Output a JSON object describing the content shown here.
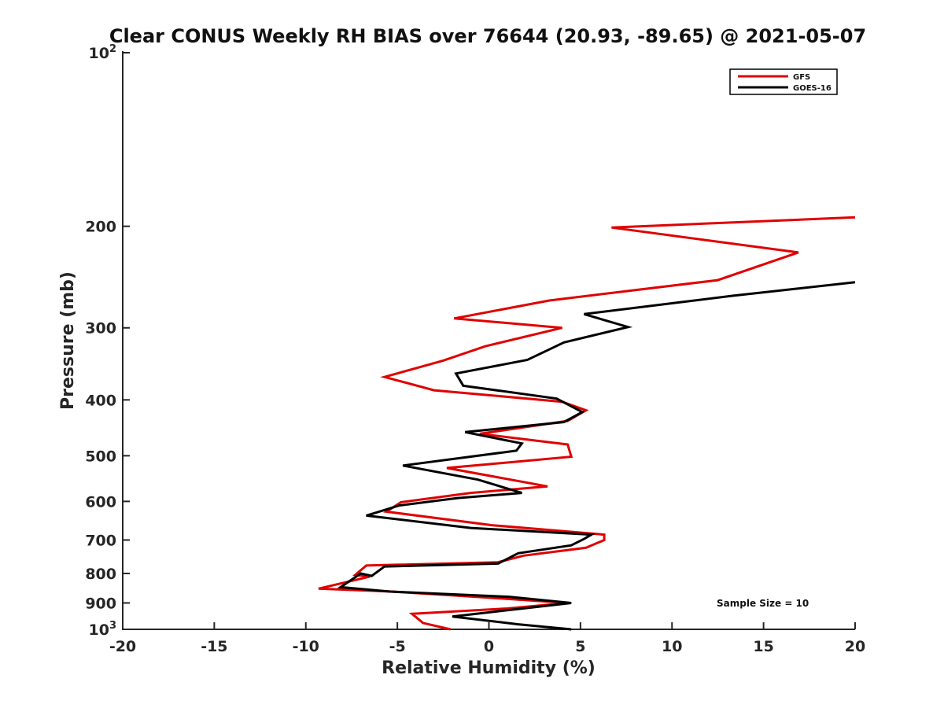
{
  "chart_data": {
    "type": "line",
    "title": "Clear CONUS Weekly RH BIAS over 76644 (20.93, -89.65) @ 2021-05-07",
    "xlabel": "Relative Humidity (%)",
    "ylabel": "Pressure (mb)",
    "xlim": [
      -20,
      20
    ],
    "ylim": [
      100,
      1000
    ],
    "yscale": "log",
    "y_reversed": true,
    "grid": false,
    "legend_position": "top-right",
    "annotation": "Sample Size = 10",
    "x_ticks": [
      {
        "value": -20,
        "label": "-20"
      },
      {
        "value": -15,
        "label": "-15"
      },
      {
        "value": -10,
        "label": "-10"
      },
      {
        "value": -5,
        "label": "-5"
      },
      {
        "value": 0,
        "label": "0"
      },
      {
        "value": 5,
        "label": "5"
      },
      {
        "value": 10,
        "label": "10"
      },
      {
        "value": 15,
        "label": "15"
      },
      {
        "value": 20,
        "label": "20"
      }
    ],
    "y_ticks": [
      {
        "value": 100,
        "label": "10",
        "exp": "2"
      },
      {
        "value": 200,
        "label": "200",
        "exp": ""
      },
      {
        "value": 300,
        "label": "300",
        "exp": ""
      },
      {
        "value": 400,
        "label": "400",
        "exp": ""
      },
      {
        "value": 500,
        "label": "500",
        "exp": ""
      },
      {
        "value": 600,
        "label": "600",
        "exp": ""
      },
      {
        "value": 700,
        "label": "700",
        "exp": ""
      },
      {
        "value": 800,
        "label": "800",
        "exp": ""
      },
      {
        "value": 900,
        "label": "900",
        "exp": ""
      },
      {
        "value": 1000,
        "label": "10",
        "exp": "3"
      }
    ],
    "series": [
      {
        "name": "GFS",
        "color": "#e00000",
        "points": [
          {
            "x": 20.0,
            "p": 193
          },
          {
            "x": 6.7,
            "p": 201
          },
          {
            "x": 16.9,
            "p": 222
          },
          {
            "x": 12.5,
            "p": 248
          },
          {
            "x": 3.3,
            "p": 269
          },
          {
            "x": -1.9,
            "p": 289
          },
          {
            "x": 4.0,
            "p": 300
          },
          {
            "x": -0.2,
            "p": 323
          },
          {
            "x": -2.5,
            "p": 342
          },
          {
            "x": -5.7,
            "p": 365
          },
          {
            "x": -3.0,
            "p": 385
          },
          {
            "x": 4.0,
            "p": 403
          },
          {
            "x": 5.3,
            "p": 417
          },
          {
            "x": 4.3,
            "p": 435
          },
          {
            "x": -0.5,
            "p": 458
          },
          {
            "x": 4.3,
            "p": 478
          },
          {
            "x": 4.5,
            "p": 502
          },
          {
            "x": -2.3,
            "p": 525
          },
          {
            "x": 3.2,
            "p": 565
          },
          {
            "x": -1.0,
            "p": 580
          },
          {
            "x": -4.8,
            "p": 602
          },
          {
            "x": -5.6,
            "p": 625
          },
          {
            "x": 0.2,
            "p": 660
          },
          {
            "x": 6.3,
            "p": 685
          },
          {
            "x": 6.3,
            "p": 700
          },
          {
            "x": 5.3,
            "p": 722
          },
          {
            "x": 1.9,
            "p": 745
          },
          {
            "x": 0.5,
            "p": 765
          },
          {
            "x": -6.7,
            "p": 775
          },
          {
            "x": -7.3,
            "p": 805
          },
          {
            "x": -6.5,
            "p": 810
          },
          {
            "x": -9.3,
            "p": 850
          },
          {
            "x": -5.3,
            "p": 860
          },
          {
            "x": -1.0,
            "p": 877
          },
          {
            "x": 4.3,
            "p": 900
          },
          {
            "x": 1.0,
            "p": 920
          },
          {
            "x": -4.2,
            "p": 940
          },
          {
            "x": -3.6,
            "p": 975
          },
          {
            "x": -2.1,
            "p": 1000
          }
        ]
      },
      {
        "name": "GOES-16",
        "color": "#000000",
        "points": [
          {
            "x": 20.0,
            "p": 250
          },
          {
            "x": 13.3,
            "p": 264
          },
          {
            "x": 5.2,
            "p": 284
          },
          {
            "x": 7.6,
            "p": 299
          },
          {
            "x": 4.1,
            "p": 318
          },
          {
            "x": 2.1,
            "p": 341
          },
          {
            "x": -1.8,
            "p": 360
          },
          {
            "x": -1.4,
            "p": 378
          },
          {
            "x": 3.7,
            "p": 398
          },
          {
            "x": 5.1,
            "p": 420
          },
          {
            "x": 4.1,
            "p": 437
          },
          {
            "x": -1.3,
            "p": 455
          },
          {
            "x": 1.8,
            "p": 476
          },
          {
            "x": 1.5,
            "p": 490
          },
          {
            "x": -4.7,
            "p": 520
          },
          {
            "x": -0.6,
            "p": 550
          },
          {
            "x": 1.8,
            "p": 580
          },
          {
            "x": -1.7,
            "p": 592
          },
          {
            "x": -4.9,
            "p": 610
          },
          {
            "x": -6.7,
            "p": 635
          },
          {
            "x": -1.0,
            "p": 667
          },
          {
            "x": 5.6,
            "p": 685
          },
          {
            "x": 5.2,
            "p": 697
          },
          {
            "x": 4.5,
            "p": 715
          },
          {
            "x": 1.6,
            "p": 738
          },
          {
            "x": 0.5,
            "p": 769
          },
          {
            "x": -5.7,
            "p": 778
          },
          {
            "x": -6.4,
            "p": 808
          },
          {
            "x": -7.0,
            "p": 800
          },
          {
            "x": -8.1,
            "p": 845
          },
          {
            "x": -5.4,
            "p": 860
          },
          {
            "x": 1.1,
            "p": 878
          },
          {
            "x": 4.5,
            "p": 900
          },
          {
            "x": -2.0,
            "p": 950
          },
          {
            "x": 1.6,
            "p": 980
          },
          {
            "x": 4.5,
            "p": 1000
          }
        ]
      }
    ]
  }
}
